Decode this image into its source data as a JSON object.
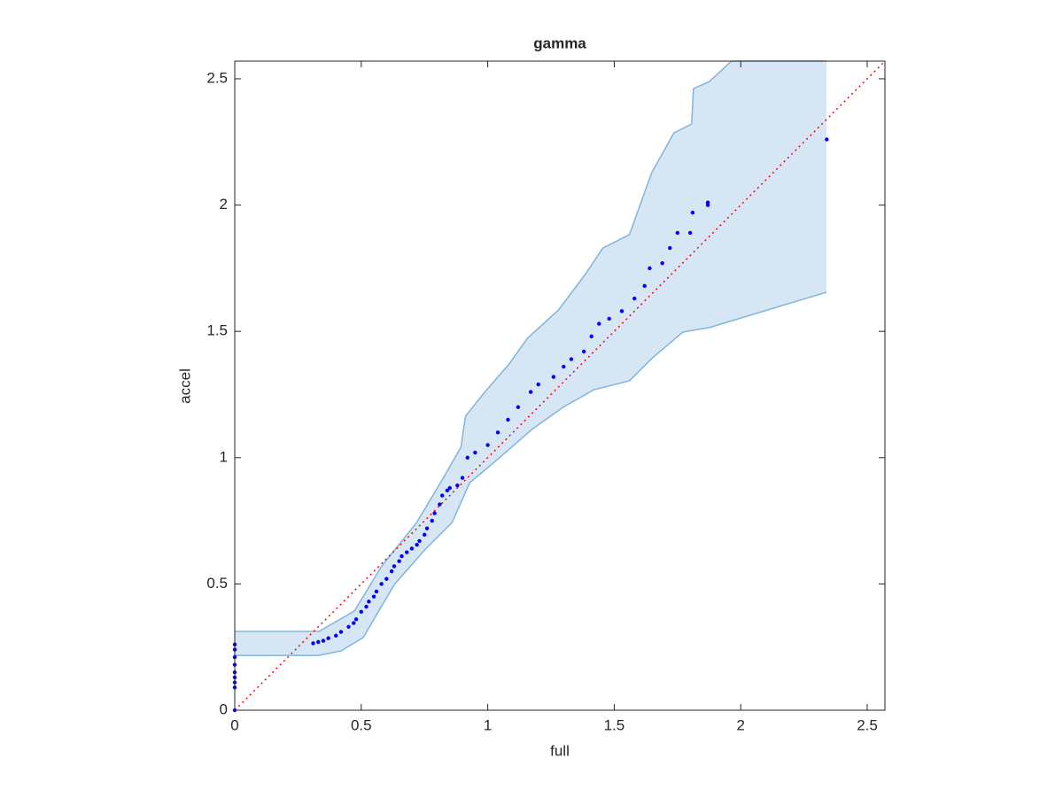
{
  "chart_data": {
    "type": "scatter",
    "title": "gamma",
    "x_label": "full",
    "y_label": "accel",
    "xlim": [
      0,
      2.57
    ],
    "ylim": [
      0,
      2.57
    ],
    "xticks": [
      0,
      0.5,
      1,
      1.5,
      2,
      2.5
    ],
    "yticks": [
      0,
      0.5,
      1,
      1.5,
      2,
      2.5
    ],
    "grid": false,
    "box": true,
    "band": {
      "color": "#d6e6f4",
      "edge_color": "#7fb6dc",
      "upper": {
        "x": [
          0,
          0.333,
          0.473,
          0.579,
          0.719,
          0.824,
          0.894,
          0.912,
          0.982,
          1.087,
          1.157,
          1.28,
          1.385,
          1.455,
          1.56,
          1.648,
          1.736,
          1.806,
          1.813,
          1.876,
          1.963,
          2.339
        ],
        "values": [
          0.312,
          0.312,
          0.393,
          0.568,
          0.743,
          0.919,
          1.041,
          1.164,
          1.252,
          1.374,
          1.473,
          1.585,
          1.725,
          1.83,
          1.883,
          2.128,
          2.286,
          2.321,
          2.461,
          2.489,
          2.57,
          2.57
        ]
      },
      "lower": {
        "x": [
          0,
          0.333,
          0.421,
          0.508,
          0.631,
          0.754,
          0.859,
          0.929,
          1.034,
          1.175,
          1.297,
          1.42,
          1.56,
          1.648,
          1.771,
          1.876,
          2.339
        ],
        "values": [
          0.217,
          0.217,
          0.235,
          0.288,
          0.498,
          0.638,
          0.743,
          0.901,
          0.989,
          1.112,
          1.199,
          1.269,
          1.304,
          1.392,
          1.497,
          1.515,
          1.655
        ]
      }
    },
    "reference_line": {
      "color": "#ff0000",
      "x": [
        0,
        2.57
      ],
      "values": [
        0,
        2.57
      ]
    },
    "series": [
      {
        "color": "#0000ff",
        "x": [
          0,
          0,
          0,
          0,
          0,
          0,
          0,
          0,
          0,
          0.31,
          0.33,
          0.35,
          0.37,
          0.4,
          0.42,
          0.45,
          0.47,
          0.48,
          0.5,
          0.52,
          0.53,
          0.55,
          0.56,
          0.58,
          0.6,
          0.62,
          0.63,
          0.65,
          0.66,
          0.68,
          0.7,
          0.72,
          0.73,
          0.75,
          0.76,
          0.78,
          0.79,
          0.81,
          0.82,
          0.84,
          0.85,
          0.88,
          0.9,
          0.92,
          0.95,
          1.0,
          1.04,
          1.08,
          1.12,
          1.17,
          1.2,
          1.26,
          1.3,
          1.33,
          1.38,
          1.41,
          1.44,
          1.48,
          1.53,
          1.58,
          1.62,
          1.64,
          1.69,
          1.72,
          1.75,
          1.8,
          1.81,
          1.87,
          1.87,
          2.34
        ],
        "values": [
          0,
          0.09,
          0.11,
          0.13,
          0.15,
          0.18,
          0.21,
          0.24,
          0.26,
          0.265,
          0.27,
          0.275,
          0.285,
          0.295,
          0.31,
          0.33,
          0.345,
          0.36,
          0.39,
          0.41,
          0.43,
          0.45,
          0.47,
          0.5,
          0.52,
          0.55,
          0.57,
          0.59,
          0.61,
          0.625,
          0.64,
          0.655,
          0.67,
          0.695,
          0.72,
          0.75,
          0.78,
          0.815,
          0.85,
          0.87,
          0.88,
          0.89,
          0.92,
          1.0,
          1.02,
          1.05,
          1.1,
          1.15,
          1.2,
          1.26,
          1.29,
          1.32,
          1.36,
          1.39,
          1.42,
          1.48,
          1.53,
          1.55,
          1.58,
          1.63,
          1.68,
          1.75,
          1.77,
          1.83,
          1.89,
          1.89,
          1.97,
          2.0,
          2.01,
          2.26
        ]
      }
    ]
  }
}
